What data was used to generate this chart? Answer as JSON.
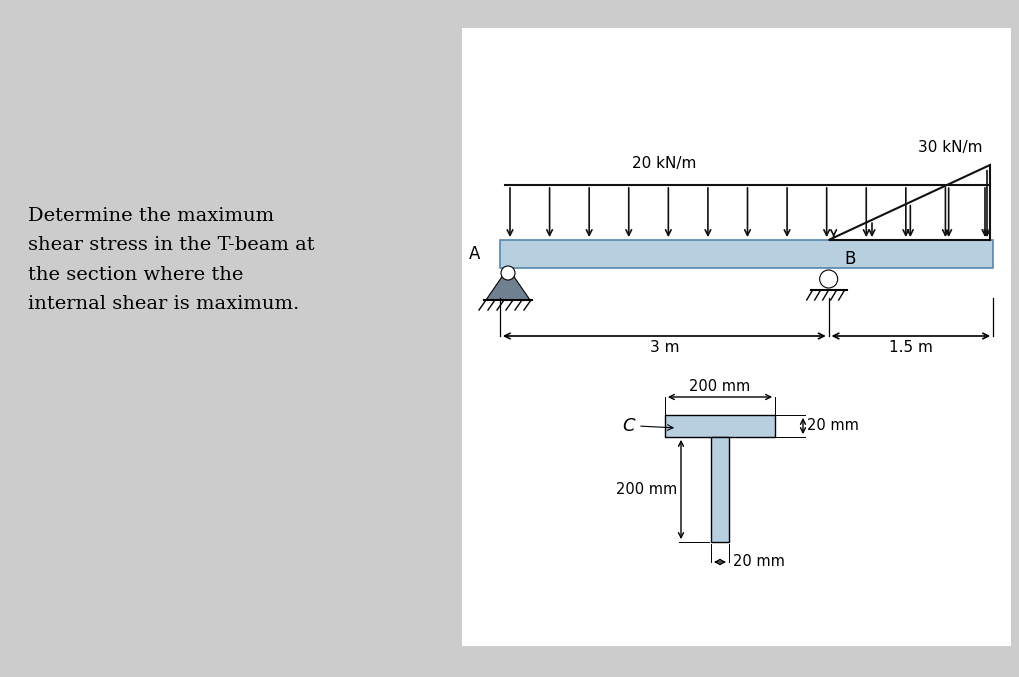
{
  "bg_color": "#cccccc",
  "panel_color": "#ffffff",
  "beam_fill": "#b8cfe0",
  "beam_edge": "#5588aa",
  "support_fill": "#708090",
  "support_fill2": "#8899aa",
  "arrow_color": "#111111",
  "text_problem": "Determine the maximum\nshear stress in the T-beam at\nthe section where the\ninternal shear is maximum.",
  "label_20kNm": "20 kN/m",
  "label_30kNm": "30 kN/m",
  "label_3m": "3 m",
  "label_15m": "1.5 m",
  "label_A": "A",
  "label_B": "B",
  "label_C": "C",
  "label_200mm_top": "200 mm",
  "label_200mm_web": "200 mm",
  "label_20mm_flange": "20 mm",
  "label_20mm_web": "20 mm",
  "font_size_problem": 14,
  "font_size_labels": 11,
  "font_size_dim": 10.5
}
